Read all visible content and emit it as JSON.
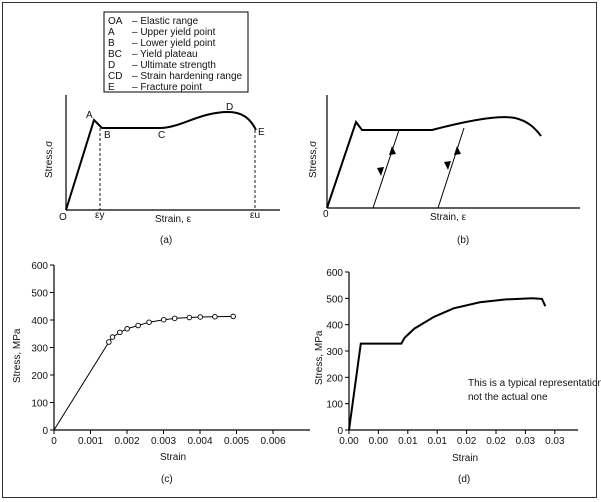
{
  "panels": {
    "a": {
      "caption": "(a)",
      "ylabel": "Stress,σ",
      "xlabel": "Strain, ε",
      "origin": "O",
      "points": [
        "A",
        "B",
        "C",
        "D",
        "E"
      ],
      "x_marks": [
        "εy",
        "εu"
      ],
      "legend": [
        {
          "key": "OA",
          "text": "– Elastic range"
        },
        {
          "key": "A",
          "text": "– Upper yield point"
        },
        {
          "key": "B",
          "text": "– Lower yield point"
        },
        {
          "key": "BC",
          "text": "– Yield plateau"
        },
        {
          "key": "D",
          "text": "– Ultimate strength"
        },
        {
          "key": "CD",
          "text": "– Strain hardening range"
        },
        {
          "key": "E",
          "text": "– Fracture point"
        }
      ]
    },
    "b": {
      "caption": "(b)",
      "ylabel": "Stress,σ",
      "xlabel": "Strain,  ε",
      "origin": "0"
    },
    "c": {
      "caption": "(c)",
      "ylabel": "Stress, MPa",
      "xlabel": "Strain"
    },
    "d": {
      "caption": "(d)",
      "ylabel": "Stress, MPa",
      "xlabel": "Strain",
      "note": [
        "This is a typical representation,",
        "not the actual one"
      ]
    }
  },
  "chart_data": [
    {
      "type": "line",
      "panel": "c",
      "x_ticks": [
        "0",
        "0.001",
        "0.002",
        "0.003",
        "0.004",
        "0.005",
        "0.006"
      ],
      "y_ticks": [
        "0",
        "100",
        "200",
        "300",
        "400",
        "500",
        "600"
      ],
      "xlim": [
        0,
        0.007
      ],
      "ylim": [
        0,
        600
      ],
      "line": {
        "x": [
          0,
          0.0015,
          0.0016,
          0.0018,
          0.002,
          0.0023,
          0.0026,
          0.003,
          0.0033,
          0.0037,
          0.004,
          0.0044,
          0.0049
        ],
        "y": [
          0,
          320,
          338,
          355,
          368,
          380,
          392,
          401,
          406,
          409,
          411,
          412,
          413
        ]
      },
      "markers": {
        "x": [
          0.0015,
          0.0016,
          0.0018,
          0.002,
          0.0023,
          0.0026,
          0.003,
          0.0033,
          0.0037,
          0.004,
          0.0044,
          0.0049
        ],
        "y": [
          320,
          338,
          355,
          368,
          380,
          392,
          401,
          406,
          409,
          411,
          412,
          413
        ]
      }
    },
    {
      "type": "line",
      "panel": "d",
      "x_ticks": [
        "0.00",
        "0.00",
        "0.01",
        "0.01",
        "0.02",
        "0.02",
        "0.03",
        "0.03"
      ],
      "y_ticks": [
        "0",
        "100",
        "200",
        "300",
        "400",
        "500",
        "600"
      ],
      "xlim": [
        0,
        0.035
      ],
      "ylim": [
        0,
        600
      ],
      "line": {
        "x": [
          0,
          0.0018,
          0.008,
          0.0085,
          0.01,
          0.013,
          0.016,
          0.02,
          0.024,
          0.028,
          0.0295,
          0.03
        ],
        "y": [
          0,
          328,
          328,
          350,
          385,
          430,
          462,
          485,
          496,
          500,
          498,
          470
        ]
      }
    }
  ]
}
